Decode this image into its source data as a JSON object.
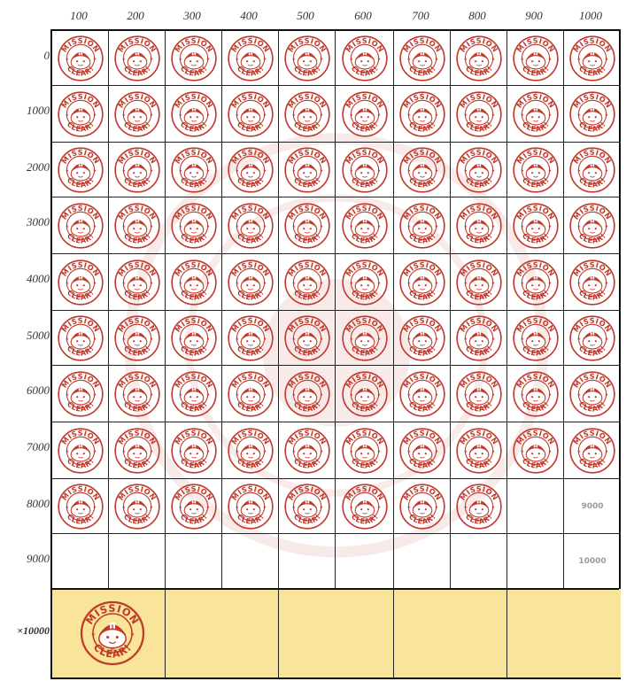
{
  "column_headers": [
    "100",
    "200",
    "300",
    "400",
    "500",
    "600",
    "700",
    "800",
    "900",
    "1000"
  ],
  "row_headers": [
    "0",
    "1000",
    "2000",
    "3000",
    "4000",
    "5000",
    "6000",
    "7000",
    "8000",
    "9000"
  ],
  "bonus_row_header": "×10000",
  "stamp": {
    "top_text": "MISSION",
    "bottom_text": "CLEAR!",
    "color": "#c0392b"
  },
  "stamped_counts_per_row": [
    10,
    10,
    10,
    10,
    10,
    10,
    10,
    10,
    8,
    0
  ],
  "unstamped_cell_numbers": [
    {
      "row": 8,
      "col": 9,
      "text": "9000"
    },
    {
      "row": 9,
      "col": 9,
      "text": "10000"
    }
  ],
  "bonus_stamped_count": 1,
  "colors": {
    "bonus_bg": "#f9e59a",
    "stamp_red": "#c0392b",
    "grid_line": "#222222"
  }
}
